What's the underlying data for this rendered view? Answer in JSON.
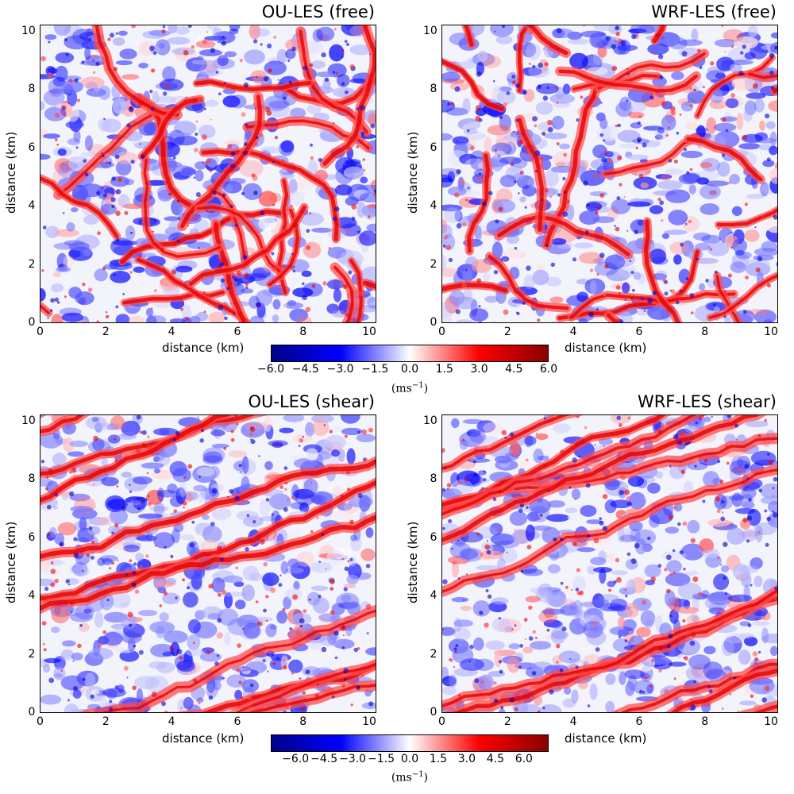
{
  "chart_data": [
    {
      "type": "heatmap",
      "title": "OU-LES (free)",
      "xlabel": "distance (km)",
      "ylabel": "distance (km)",
      "xlim": [
        0,
        10.24
      ],
      "ylim": [
        0,
        10.24
      ],
      "xticks": [
        "0",
        "2",
        "4",
        "6",
        "8",
        "10"
      ],
      "yticks": [
        "0",
        "2",
        "4",
        "6",
        "8",
        "10"
      ],
      "pattern": "cellular",
      "seed": 11
    },
    {
      "type": "heatmap",
      "title": "WRF-LES (free)",
      "xlabel": "distance (km)",
      "ylabel": "distance (km)",
      "xlim": [
        0,
        10.24
      ],
      "ylim": [
        0,
        10.24
      ],
      "xticks": [
        "0",
        "2",
        "4",
        "6",
        "8",
        "10"
      ],
      "yticks": [
        "0",
        "2",
        "4",
        "6",
        "8",
        "10"
      ],
      "pattern": "cellular",
      "seed": 23
    },
    {
      "type": "heatmap",
      "title": "OU-LES (shear)",
      "xlabel": "distance (km)",
      "ylabel": "distance (km)",
      "xlim": [
        0,
        10.24
      ],
      "ylim": [
        0,
        10.24
      ],
      "xticks": [
        "0",
        "2",
        "4",
        "6",
        "8",
        "10"
      ],
      "yticks": [
        "0",
        "2",
        "4",
        "6",
        "8",
        "10"
      ],
      "pattern": "streaks",
      "seed": 37
    },
    {
      "type": "heatmap",
      "title": "WRF-LES (shear)",
      "xlabel": "distance (km)",
      "ylabel": "distance (km)",
      "xlim": [
        0,
        10.24
      ],
      "ylim": [
        0,
        10.24
      ],
      "xticks": [
        "0",
        "2",
        "4",
        "6",
        "8",
        "10"
      ],
      "yticks": [
        "0",
        "2",
        "4",
        "6",
        "8",
        "10"
      ],
      "pattern": "streaks",
      "seed": 53
    }
  ],
  "colorbars": [
    {
      "range": [
        -6.0,
        6.0
      ],
      "ticks": [
        "−6.0",
        "−4.5",
        "−3.0",
        "−1.5",
        "0.0",
        "1.5",
        "3.0",
        "4.5",
        "6.0"
      ],
      "tick_values": [
        -6.0,
        -4.5,
        -3.0,
        -1.5,
        0.0,
        1.5,
        3.0,
        4.5,
        6.0
      ],
      "unit_base": "(ms",
      "unit_exp": "−1",
      "unit_close": ")"
    },
    {
      "range": [
        -7.3,
        7.3
      ],
      "ticks": [
        "−6.0",
        "−4.5",
        "−3.0",
        "−1.5",
        "0.0",
        "1.5",
        "3.0",
        "4.5",
        "6.0"
      ],
      "tick_values": [
        -6.0,
        -4.5,
        -3.0,
        -1.5,
        0.0,
        1.5,
        3.0,
        4.5,
        6.0
      ],
      "unit_base": "(ms",
      "unit_exp": "−1",
      "unit_close": ")"
    }
  ],
  "colors": {
    "neg_extreme": "#00008a",
    "neg": "#0000ff",
    "zero": "#ffffff",
    "pos": "#ff0000",
    "pos_extreme": "#8a0000"
  }
}
